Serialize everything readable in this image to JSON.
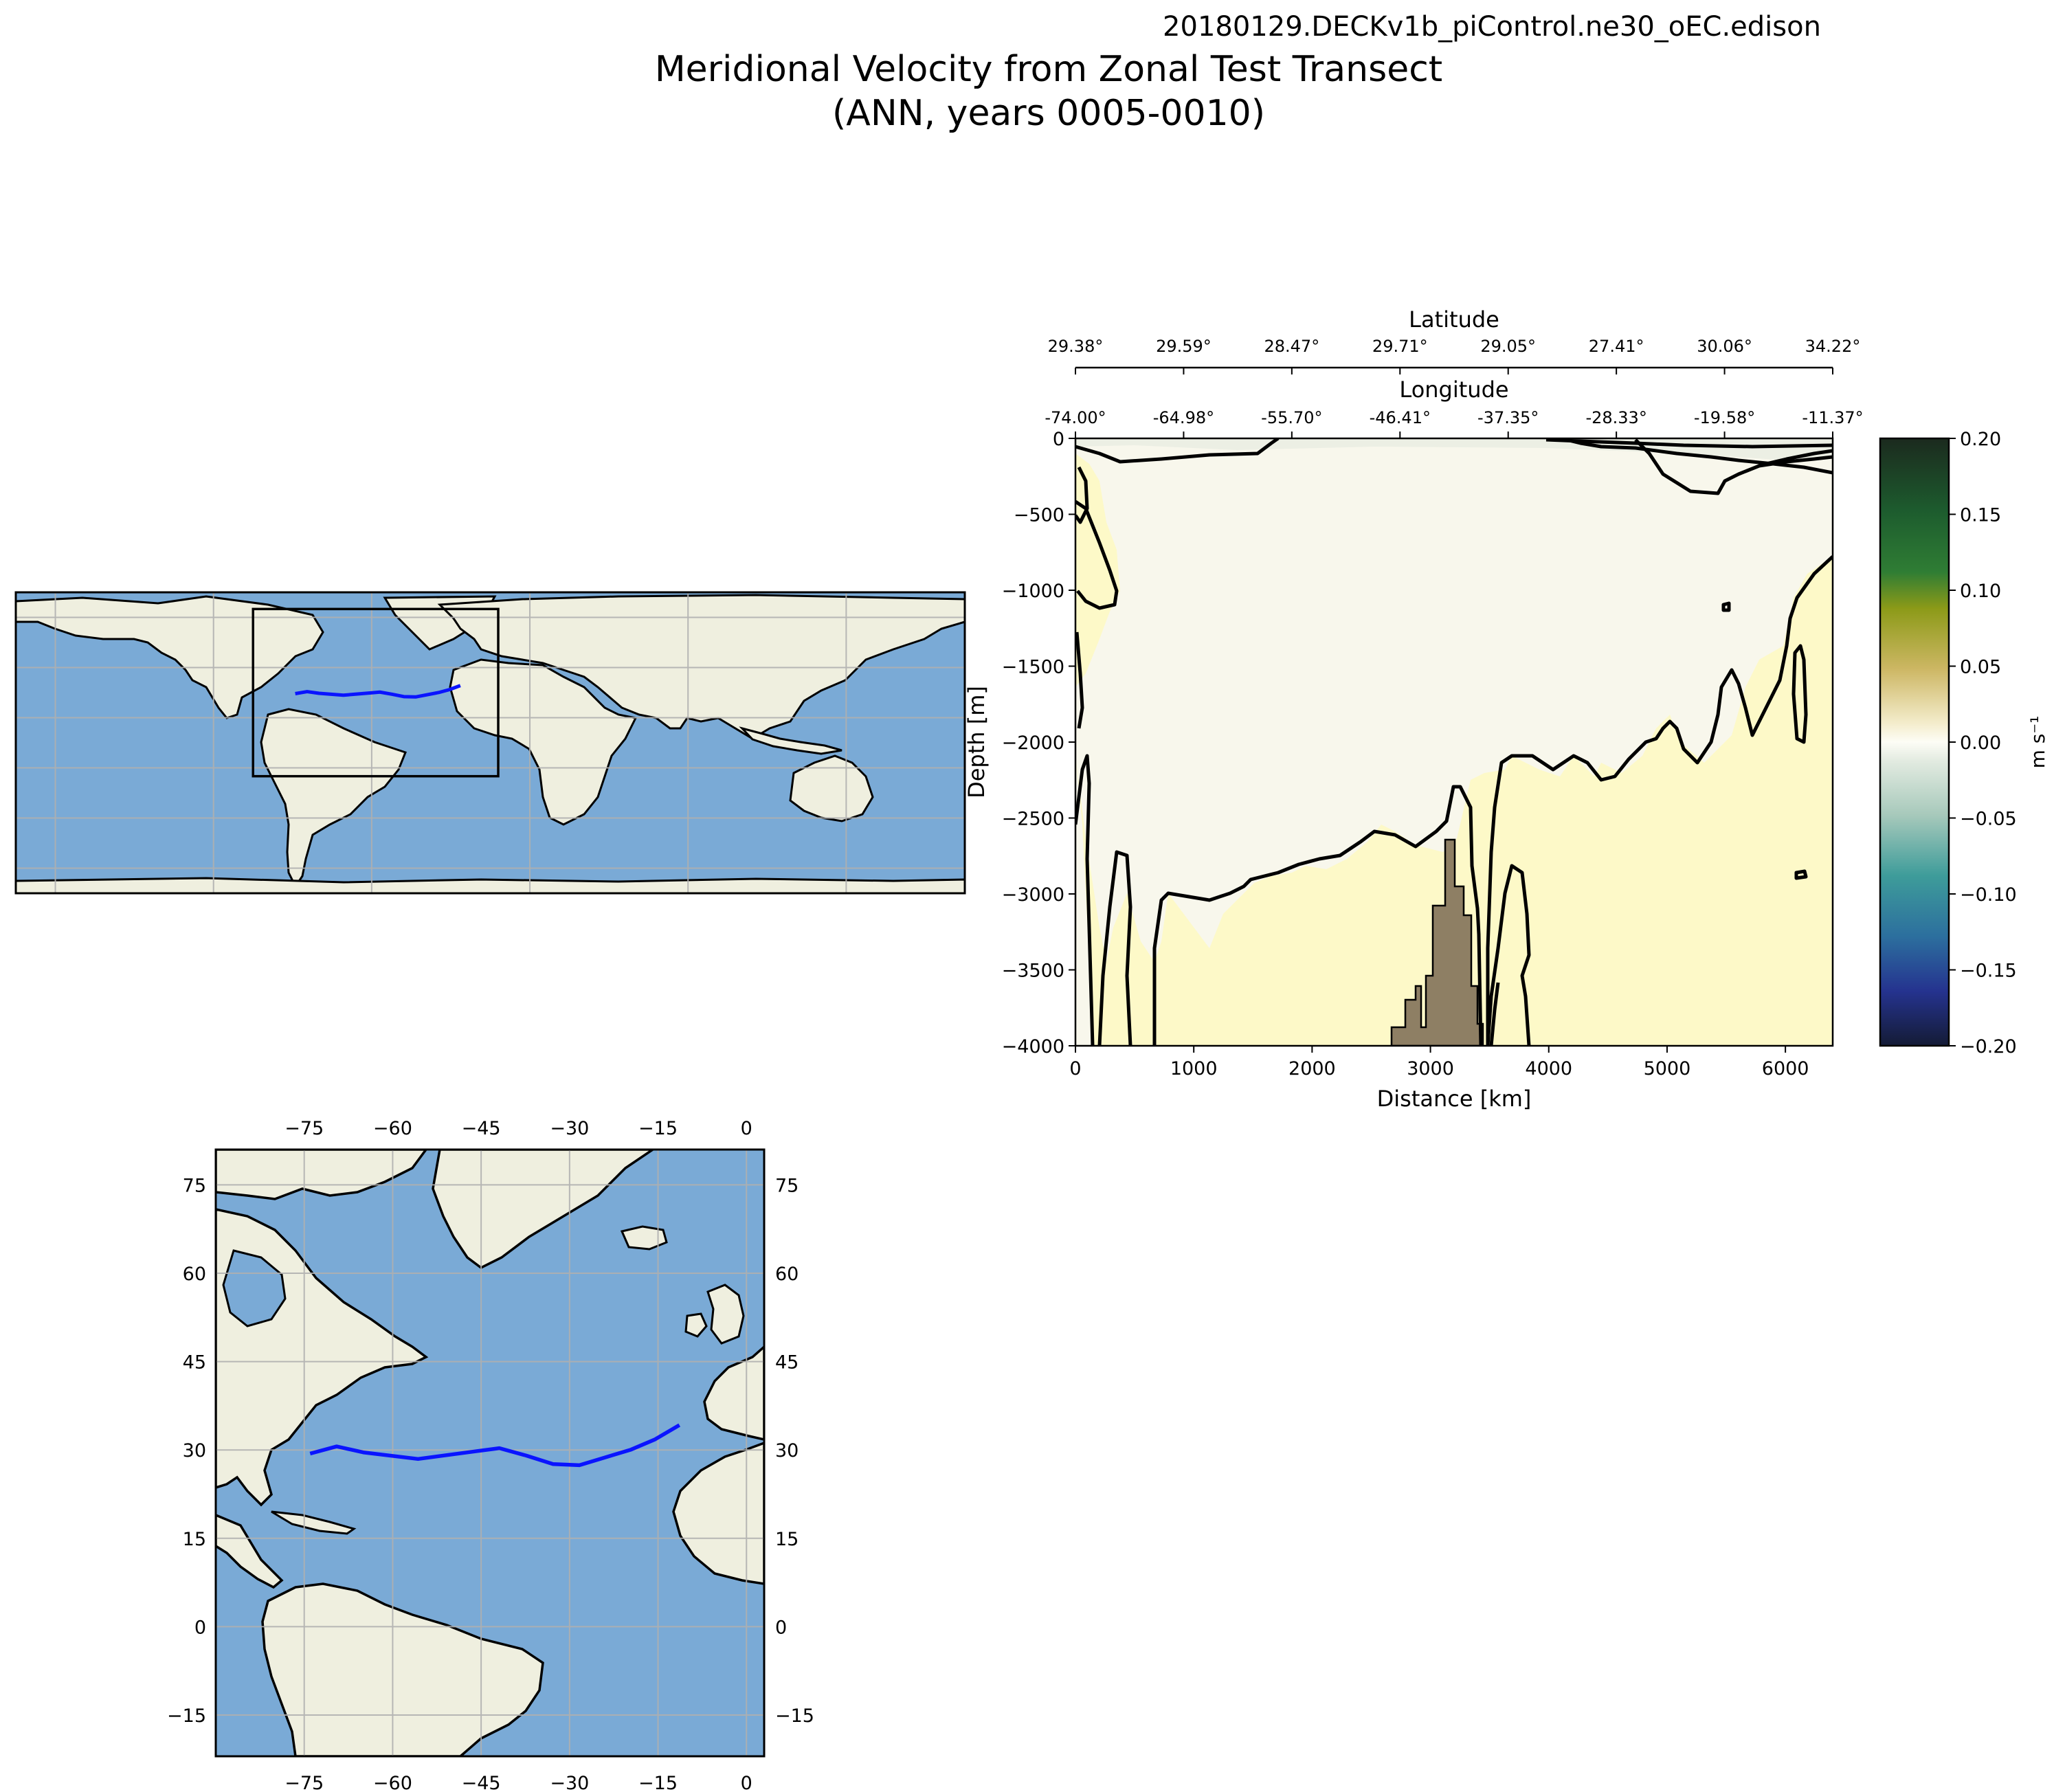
{
  "header": {
    "run_name": "20180129.DECKv1b_piControl.ne30_oEC.edison",
    "title_line1": "Meridional Velocity from Zonal Test Transect",
    "title_line2": "(ANN, years 0005-0010)"
  },
  "colors": {
    "ocean": "#7aaad6",
    "land": "#efefdf",
    "transect": "#0a14ff",
    "bathymetry": "#8e7f64",
    "positive_fill": "#fdf9c8",
    "neutral_fill": "#f8f7ec"
  },
  "chart_data": [
    {
      "id": "global_map",
      "type": "map",
      "projection": "plate-carree",
      "extent": {
        "lon": [
          -180,
          180
        ],
        "lat": [
          -90,
          90
        ]
      },
      "gridlines": true,
      "region_box": {
        "lon": [
          -90,
          3
        ],
        "lat": [
          -20,
          80
        ]
      },
      "transect": {
        "lon": [
          -74.0,
          -69.5,
          -64.98,
          -55.7,
          -46.41,
          -41.9,
          -37.35,
          -32.8,
          -28.33,
          -19.58,
          -15.5,
          -11.37
        ],
        "lat": [
          29.38,
          30.6,
          29.59,
          28.47,
          29.71,
          30.3,
          29.05,
          27.6,
          27.41,
          30.06,
          31.8,
          34.22
        ]
      }
    },
    {
      "id": "transect_section",
      "type": "heatmap",
      "xlabel": "Distance [km]",
      "ylabel": "Depth [m]",
      "xlim": [
        0,
        6400
      ],
      "ylim": [
        -4000,
        0
      ],
      "x_ticks": [
        0,
        1000,
        2000,
        3000,
        4000,
        5000,
        6000
      ],
      "y_ticks": [
        0,
        -500,
        -1000,
        -1500,
        -2000,
        -2500,
        -3000,
        -3500,
        -4000
      ],
      "top_axis_latitude": {
        "label": "Latitude",
        "tick_labels": [
          "29.38°",
          "29.59°",
          "28.47°",
          "29.71°",
          "29.05°",
          "27.41°",
          "30.06°",
          "34.22°"
        ]
      },
      "top_axis_longitude": {
        "label": "Longitude",
        "tick_labels": [
          "-74.00°",
          "-64.98°",
          "-55.70°",
          "-46.41°",
          "-37.35°",
          "-28.33°",
          "-19.58°",
          "-11.37°"
        ]
      },
      "colorbar": {
        "label": "m s⁻¹",
        "range": [
          -0.2,
          0.2
        ],
        "ticks": [
          "0.20",
          "0.15",
          "0.10",
          "0.05",
          "0.00",
          "−0.05",
          "−0.10",
          "−0.15",
          "−0.20"
        ],
        "cmap": "delta (blue – white – yellow – green)"
      },
      "contour_levels": [
        0.0
      ]
    },
    {
      "id": "regional_map",
      "type": "map",
      "projection": "plate-carree",
      "extent": {
        "lon": [
          -90,
          3
        ],
        "lat": [
          -22,
          81
        ]
      },
      "gridlines": true,
      "lon_ticks": [
        -75,
        -60,
        -45,
        -30,
        -15,
        0
      ],
      "lat_ticks": [
        75,
        60,
        45,
        30,
        15,
        0,
        -15
      ],
      "lon_tick_labels": [
        "−75",
        "−60",
        "−45",
        "−30",
        "−15",
        "0"
      ],
      "lat_tick_labels": [
        "75",
        "60",
        "45",
        "30",
        "15",
        "0",
        "−15"
      ]
    }
  ]
}
